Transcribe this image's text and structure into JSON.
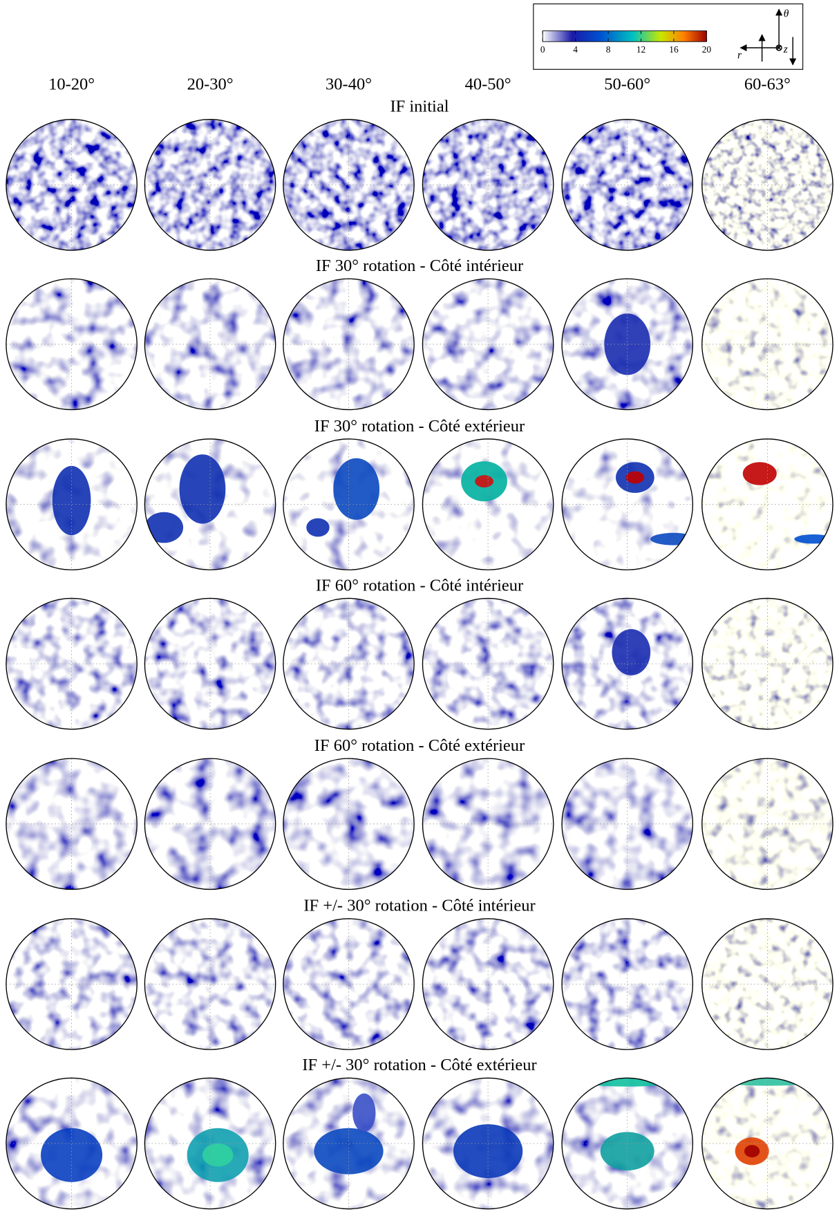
{
  "colorbar": {
    "ticks": [
      0,
      4,
      8,
      12,
      16,
      20
    ]
  },
  "axes_symbols": {
    "theta": "θ",
    "z": "z",
    "r": "r"
  },
  "columns": [
    "10-20°",
    "20-30°",
    "30-40°",
    "40-50°",
    "50-60°",
    "60-63°"
  ],
  "rows": [
    {
      "title": "IF initial"
    },
    {
      "title": "IF 30° rotation - Côté intérieur"
    },
    {
      "title": "IF 30° rotation - Côté extérieur"
    },
    {
      "title": "IF 60° rotation - Côté intérieur"
    },
    {
      "title": "IF 60° rotation - Côté extérieur"
    },
    {
      "title": "IF +/- 30° rotation - Côté intérieur"
    },
    {
      "title": "IF +/- 30° rotation - Côté extérieur"
    }
  ]
}
